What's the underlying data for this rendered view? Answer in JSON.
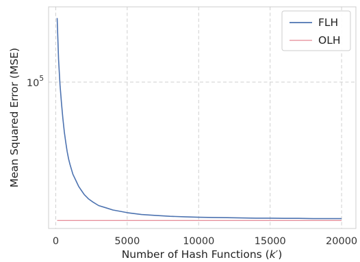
{
  "chart_data": {
    "type": "line",
    "title": "",
    "xlabel_prefix": "Number of Hash Functions (",
    "xlabel_var": "k",
    "xlabel_suffix": "′)",
    "ylabel": "Mean Squared Error (MSE)",
    "xlim": [
      -500,
      21000
    ],
    "ylim": [
      60000,
      130000
    ],
    "yscale": "log",
    "x_ticks": [
      0,
      5000,
      10000,
      15000,
      20000
    ],
    "x_tick_labels": [
      "0",
      "5000",
      "10000",
      "15000",
      "20000"
    ],
    "y_ticks": [
      100000
    ],
    "y_tick_labels": [
      {
        "base": "10",
        "exp": "5"
      }
    ],
    "grid": true,
    "legend": "top-right",
    "colors": {
      "FLH": "#4c72b0",
      "OLH": "#dd6a7a"
    },
    "series": [
      {
        "name": "FLH",
        "x": [
          100,
          200,
          300,
          400,
          500,
          600,
          700,
          800,
          900,
          1000,
          1200,
          1400,
          1600,
          1800,
          2000,
          2300,
          2600,
          3000,
          3500,
          4000,
          4500,
          5000,
          6000,
          7000,
          8000,
          9000,
          10000,
          11000,
          12000,
          13000,
          14000,
          15000,
          16000,
          17000,
          18000,
          19000,
          20000
        ],
        "y": [
          125000,
          108000,
          99000,
          93000,
          88000,
          84000,
          81000,
          78500,
          76500,
          75000,
          72500,
          71000,
          69500,
          68500,
          67500,
          66500,
          65800,
          65000,
          64500,
          64000,
          63700,
          63400,
          63000,
          62800,
          62600,
          62500,
          62400,
          62350,
          62300,
          62250,
          62200,
          62200,
          62150,
          62150,
          62100,
          62100,
          62100
        ]
      },
      {
        "name": "OLH",
        "x": [
          100,
          20000
        ],
        "y": [
          61700,
          61700
        ]
      }
    ]
  }
}
